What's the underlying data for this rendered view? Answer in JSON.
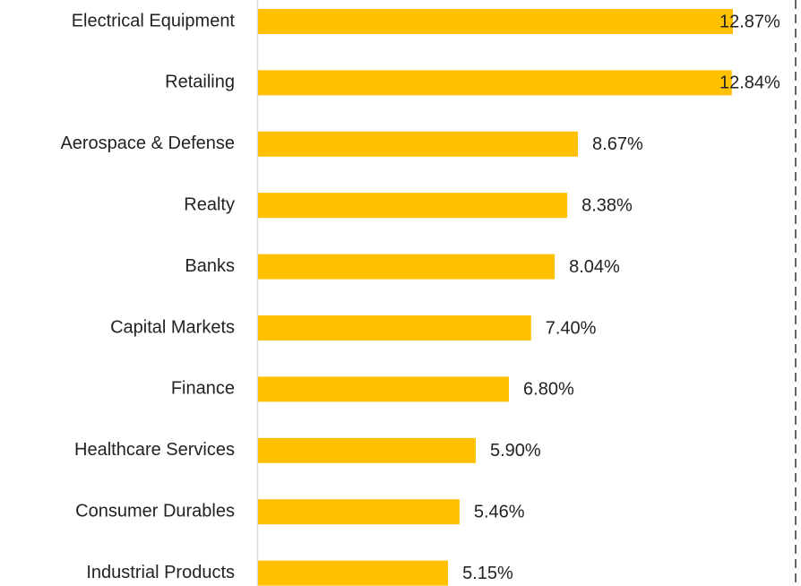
{
  "chart_data": {
    "type": "barh",
    "categories": [
      "Electrical Equipment",
      "Retailing",
      "Aerospace & Defense",
      "Realty",
      "Banks",
      "Capital Markets",
      "Finance",
      "Healthcare Services",
      "Consumer Durables",
      "Industrial Products"
    ],
    "values": [
      12.87,
      12.84,
      8.67,
      8.38,
      8.04,
      7.4,
      6.8,
      5.9,
      5.46,
      5.15
    ],
    "value_labels": [
      "12.87%",
      "12.84%",
      "8.67%",
      "8.38%",
      "8.04%",
      "7.40%",
      "6.80%",
      "5.90%",
      "5.46%",
      "5.15%"
    ],
    "color": "#ffc000"
  }
}
